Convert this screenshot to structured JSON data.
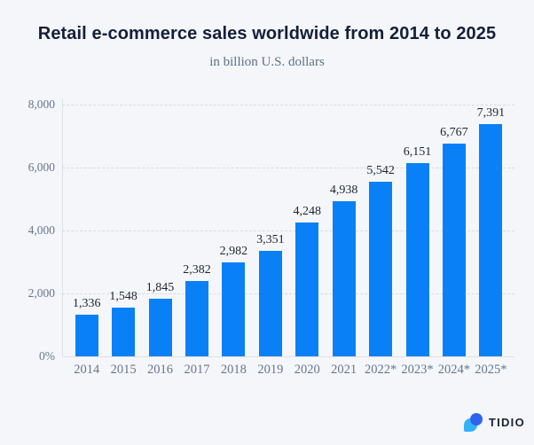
{
  "chart_data": {
    "type": "bar",
    "title": "Retail e-commerce sales worldwide from 2014 to 2025",
    "subtitle": "in billion U.S. dollars",
    "categories": [
      "2014",
      "2015",
      "2016",
      "2017",
      "2018",
      "2019",
      "2020",
      "2021",
      "2022*",
      "2023*",
      "2024*",
      "2025*"
    ],
    "values": [
      1336,
      1548,
      1845,
      2382,
      2982,
      3351,
      4248,
      4938,
      5542,
      6151,
      6767,
      7391
    ],
    "value_labels": [
      "1,336",
      "1,548",
      "1,845",
      "2,382",
      "2,982",
      "3,351",
      "4,248",
      "4,938",
      "5,542",
      "6,151",
      "6,767",
      "7,391"
    ],
    "xlabel": "",
    "ylabel": "",
    "ylim": [
      0,
      8000
    ],
    "yticks": [
      {
        "value": 8000,
        "label": "8,000"
      },
      {
        "value": 6000,
        "label": "6,000"
      },
      {
        "value": 4000,
        "label": "4,000"
      },
      {
        "value": 2000,
        "label": "2,000"
      },
      {
        "value": 0,
        "label": "0%"
      }
    ],
    "grid": "horizontal-dashed",
    "legend": "none",
    "bar_color": "#0a80f7"
  },
  "colors": {
    "background": "#f5f6f9",
    "title": "#141f3a",
    "subtitle": "#5d6e8d",
    "axis_label": "#67758f",
    "value_label": "#1c2534",
    "gridline": "#d7dae3",
    "logo_light_blue": "#35b1f8",
    "logo_dark_blue": "#2d63ef"
  },
  "footer": {
    "logo_text": "TIDIO"
  }
}
